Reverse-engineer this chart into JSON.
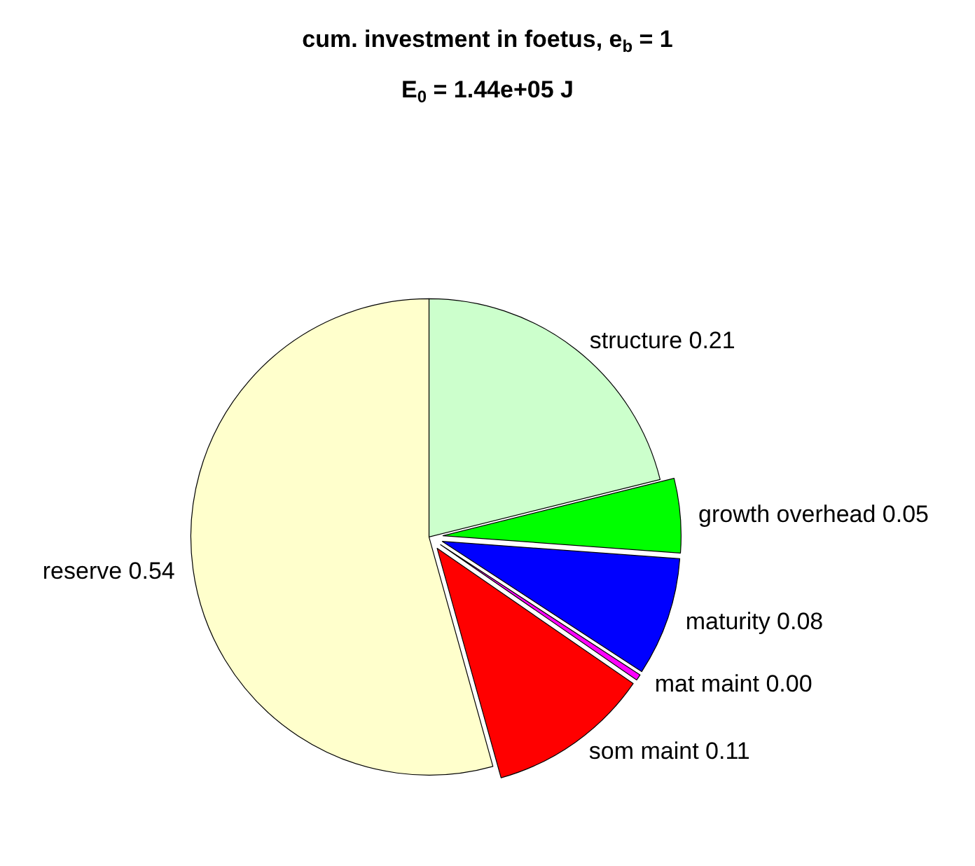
{
  "chart_data": {
    "type": "pie",
    "title": "cum. investment in foetus, e$_{b}$ = 1",
    "subtitle": "E$_{0}$ = 1.44e+05 J",
    "categories": [
      "structure",
      "growth overhead",
      "maturity",
      "mat maint",
      "som maint",
      "reserve"
    ],
    "values": [
      0.21,
      0.05,
      0.08,
      0.004,
      0.11,
      0.54
    ],
    "value_labels": [
      "0.21",
      "0.05",
      "0.08",
      "0.00",
      "0.11",
      "0.54"
    ],
    "colors": [
      "#ccffcc",
      "#00ff00",
      "#0000ff",
      "#ff00ff",
      "#ff0000",
      "#ffffcc"
    ],
    "legend": false
  }
}
